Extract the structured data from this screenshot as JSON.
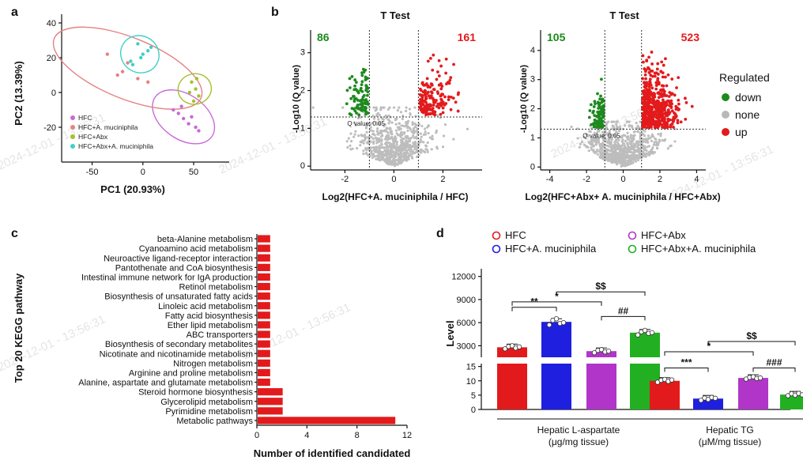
{
  "panels": {
    "a": {
      "letter": "a"
    },
    "b": {
      "letter": "b"
    },
    "c": {
      "letter": "c"
    },
    "d": {
      "letter": "d"
    }
  },
  "watermark": "2024-12-01 - 13:56:31",
  "chart_data": [
    {
      "id": "a",
      "type": "scatter",
      "xlabel": "PC1 (20.93%)",
      "ylabel": "PC2 (13.39%)",
      "xlim": [
        -80,
        85
      ],
      "ylim": [
        -40,
        45
      ],
      "xticks": [
        "-50",
        "0",
        "50"
      ],
      "xtick_values": [
        -50,
        0,
        50
      ],
      "yticks": [
        "40",
        "20",
        "0",
        "-20"
      ],
      "ytick_values": [
        40,
        20,
        0,
        -20
      ],
      "series": [
        {
          "name": "HFC",
          "color": "#c86ad6",
          "points": [
            [
              30,
              -10
            ],
            [
              35,
              -12
            ],
            [
              40,
              -15
            ],
            [
              45,
              -18
            ],
            [
              52,
              -20
            ],
            [
              48,
              -14
            ],
            [
              38,
              -8
            ],
            [
              55,
              -22
            ]
          ]
        },
        {
          "name": "HFC+A. muciniphila",
          "color": "#e58282",
          "points": [
            [
              -35,
              22
            ],
            [
              -20,
              12
            ],
            [
              -5,
              8
            ],
            [
              5,
              6
            ],
            [
              -15,
              17
            ],
            [
              -25,
              10
            ]
          ]
        },
        {
          "name": "HFC+Abx",
          "color": "#a3c12c",
          "points": [
            [
              48,
              6
            ],
            [
              52,
              2
            ],
            [
              55,
              -2
            ],
            [
              50,
              -5
            ],
            [
              53,
              8
            ],
            [
              46,
              0
            ]
          ]
        },
        {
          "name": "HFC+Abx+A. muciniphila",
          "color": "#3fd0c8",
          "points": [
            [
              -10,
              16
            ],
            [
              0,
              22
            ],
            [
              5,
              24
            ],
            [
              -5,
              28
            ],
            [
              -12,
              18
            ],
            [
              -2,
              20
            ],
            [
              8,
              26
            ]
          ]
        }
      ]
    },
    {
      "id": "b1",
      "type": "scatter",
      "title": "T Test",
      "xlabel": "Log2(HFC+A. muciniphila / HFC)",
      "ylabel": "-Log10 (Q value)",
      "xlim": [
        -3.4,
        3.6
      ],
      "ylim": [
        -0.1,
        3.6
      ],
      "xticks": [
        "-2",
        "0",
        "2"
      ],
      "xtick_values": [
        -2,
        0,
        2
      ],
      "yticks": [
        "0",
        "1",
        "2",
        "3"
      ],
      "ytick_values": [
        0,
        1,
        2,
        3
      ],
      "fc_threshold": 1,
      "q_threshold": 1.3,
      "q_label": "Q value: 0.05",
      "down_count": "86",
      "up_count": "161",
      "counts": {
        "down": 86,
        "up": 161
      }
    },
    {
      "id": "b2",
      "type": "scatter",
      "title": "T Test",
      "xlabel": "Log2(HFC+Abx+ A. muciniphila / HFC+Abx)",
      "ylabel": "-Log10 (Q value)",
      "xlim": [
        -4.5,
        4.5
      ],
      "ylim": [
        -0.1,
        4.7
      ],
      "xticks": [
        "-4",
        "-2",
        "0",
        "2",
        "4"
      ],
      "xtick_values": [
        -4,
        -2,
        0,
        2,
        4
      ],
      "yticks": [
        "0",
        "1",
        "2",
        "3",
        "4"
      ],
      "ytick_values": [
        0,
        1,
        2,
        3,
        4
      ],
      "fc_threshold": 1,
      "q_threshold": 1.3,
      "q_label": "Q value: 0.05",
      "down_count": "105",
      "up_count": "523",
      "counts": {
        "down": 105,
        "up": 523
      },
      "legend_title": "Regulated",
      "legend": [
        {
          "name": "down",
          "color": "#1d8a1d"
        },
        {
          "name": "none",
          "color": "#b9b9b9"
        },
        {
          "name": "up",
          "color": "#e31a1c"
        }
      ]
    },
    {
      "id": "c",
      "type": "bar",
      "orientation": "horizontal",
      "xlabel": "Number of identified candidated",
      "ylabel": "Top 20 KEGG pathway",
      "xlim": [
        0,
        12
      ],
      "xticks": [
        "0",
        "4",
        "8",
        "12"
      ],
      "xtick_values": [
        0,
        4,
        8,
        12
      ],
      "color": "#e31a1c",
      "categories": [
        "beta-Alanine metabolism",
        "Cyanoamino acid metabolism",
        "Neuroactive ligand-receptor interaction",
        "Pantothenate and CoA biosynthesis",
        "Intestinal immune network for IgA production",
        "Retinol metabolism",
        "Biosynthesis of unsaturated fatty acids",
        "Linoleic acid metabolism",
        "Fatty acid biosynthesis",
        "Ether lipid metabolism",
        "ABC transporters",
        "Biosynthesis of secondary metabolites",
        "Nicotinate and nicotinamide metabolism",
        "Nitrogen metabolism",
        "Arginine and proline metabolism",
        "Alanine, aspartate and glutamate metabolism",
        "Steroid hormone biosynthesis",
        "Glycerolipid metabolism",
        "Pyrimidine metabolism",
        "Metabolic pathways"
      ],
      "values": [
        1,
        1,
        1,
        1,
        1,
        1,
        1,
        1,
        1,
        1,
        1,
        1,
        1,
        1,
        1,
        1,
        2,
        2,
        2,
        11
      ]
    },
    {
      "id": "d",
      "type": "bar",
      "ylabel": "Level",
      "upper_yticks": [
        "3000",
        "6000",
        "9000",
        "12000"
      ],
      "upper_ytick_values": [
        3000,
        6000,
        9000,
        12000
      ],
      "lower_yticks": [
        "0",
        "5",
        "10",
        "15"
      ],
      "lower_ytick_values": [
        0,
        5,
        10,
        15
      ],
      "series": [
        {
          "name": "HFC",
          "color": "#e31a1c"
        },
        {
          "name": "HFC+A. muciniphila",
          "color": "#1f1fe0"
        },
        {
          "name": "HFC+Abx",
          "color": "#b035c8"
        },
        {
          "name": "HFC+Abx+A. muciniphila",
          "color": "#22b022"
        }
      ],
      "groups": [
        {
          "label_line1": "Hepatic L-aspartate",
          "label_line2": "(μg/mg tissue)",
          "values": [
            2800,
            6100,
            2300,
            4700
          ],
          "points": [
            [
              2600,
              2900,
              3000,
              2700,
              2850
            ],
            [
              5700,
              6300,
              6500,
              5900,
              6000
            ],
            [
              2100,
              2400,
              2500,
              2200,
              2300
            ],
            [
              4400,
              4800,
              5000,
              4600,
              4700
            ]
          ],
          "brackets": [
            {
              "from": 0,
              "to": 1,
              "label": "**",
              "y": 8000
            },
            {
              "from": 0,
              "to": 2,
              "label": "*",
              "y": 8700
            },
            {
              "from": 1,
              "to": 3,
              "label": "$$",
              "y": 10000
            },
            {
              "from": 2,
              "to": 3,
              "label": "##",
              "y": 6800
            }
          ]
        },
        {
          "label_line1": "Hepatic TG",
          "label_line2": "(μM/mg tissue)",
          "values": [
            10.0,
            3.8,
            11.0,
            5.2
          ],
          "points": [
            [
              9.5,
              10.2,
              10.5,
              9.8,
              10.3
            ],
            [
              3.2,
              4.0,
              3.5,
              4.2,
              3.9
            ],
            [
              10.6,
              11.2,
              11.4,
              10.8,
              11.0
            ],
            [
              4.8,
              5.5,
              5.0,
              5.6,
              5.1
            ]
          ],
          "brackets": [
            {
              "from": 0,
              "to": 1,
              "label": "***",
              "y": 14.5
            },
            {
              "from": 0,
              "to": 2,
              "label": "*",
              "y": 1500
            },
            {
              "from": 1,
              "to": 3,
              "label": "$$",
              "y": 2600
            },
            {
              "from": 2,
              "to": 3,
              "label": "###",
              "y": 14.5
            }
          ]
        }
      ]
    }
  ]
}
